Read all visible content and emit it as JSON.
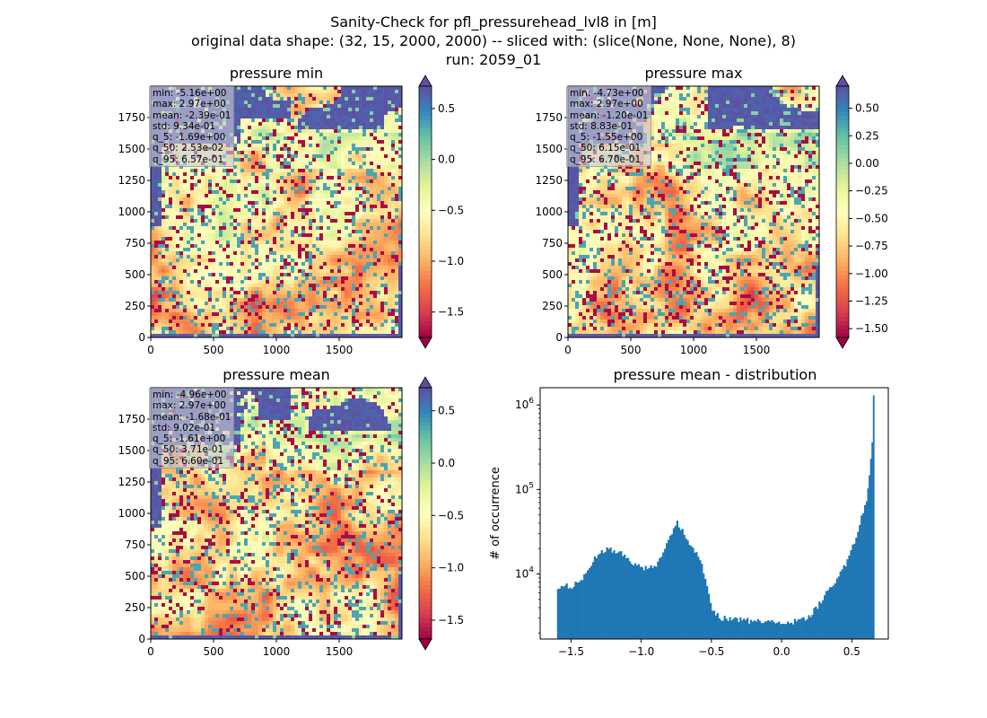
{
  "figure": {
    "title_lines": [
      "Sanity-Check for pfl_pressurehead_lvl8 in [m]",
      "original data shape: (32, 15, 2000, 2000) -- sliced with: (slice(None, None, None), 8)",
      "run: 2059_01"
    ]
  },
  "colors": {
    "spectral": [
      "#9e0142",
      "#d53e4f",
      "#f46d43",
      "#fdae61",
      "#fee08b",
      "#ffffbf",
      "#e6f598",
      "#abdda4",
      "#66c2a5",
      "#3288bd",
      "#5e4fa2"
    ],
    "hist_bar": "#1f77b4"
  },
  "chart_data": [
    {
      "type": "heatmap",
      "title": "pressure min",
      "x_ticks": [
        "0",
        "500",
        "1000",
        "1500"
      ],
      "y_ticks": [
        "0",
        "250",
        "500",
        "750",
        "1000",
        "1250",
        "1500",
        "1750"
      ],
      "xlim": [
        0,
        2000
      ],
      "ylim": [
        0,
        2000
      ],
      "colorbar": {
        "vmin": -1.75,
        "vmax": 0.72,
        "extend": "both",
        "ticks": [
          -1.5,
          -1.0,
          -0.5,
          0.0,
          0.5
        ],
        "tick_labels": [
          "−1.5",
          "−1.0",
          "−0.5",
          "0.0",
          "0.5"
        ]
      },
      "stats": [
        "min: -5.16e+00",
        "max: 2.97e+00",
        "mean: -2.39e-01",
        "std: 9.34e-01",
        "q_5: -1.69e+00",
        "q_50: 2.53e-02",
        "q_95: 6.57e-01"
      ]
    },
    {
      "type": "heatmap",
      "title": "pressure max",
      "x_ticks": [
        "0",
        "500",
        "1000",
        "1500"
      ],
      "y_ticks": [
        "0",
        "250",
        "500",
        "750",
        "1000",
        "1250",
        "1500",
        "1750"
      ],
      "xlim": [
        0,
        2000
      ],
      "ylim": [
        0,
        2000
      ],
      "colorbar": {
        "vmin": -1.58,
        "vmax": 0.7,
        "extend": "both",
        "ticks": [
          -1.5,
          -1.25,
          -1.0,
          -0.75,
          -0.5,
          -0.25,
          0.0,
          0.25,
          0.5
        ],
        "tick_labels": [
          "−1.50",
          "−1.25",
          "−1.00",
          "−0.75",
          "−0.50",
          "−0.25",
          "0.00",
          "0.25",
          "0.50"
        ]
      },
      "stats": [
        "min: -4.73e+00",
        "max: 2.97e+00",
        "mean: -1.20e-01",
        "std: 8.83e-01",
        "q_5: -1.55e+00",
        "q_50: 6.15e-01",
        "q_95: 6.70e-01"
      ]
    },
    {
      "type": "heatmap",
      "title": "pressure mean",
      "x_ticks": [
        "0",
        "500",
        "1000",
        "1500"
      ],
      "y_ticks": [
        "0",
        "250",
        "500",
        "750",
        "1000",
        "1250",
        "1500",
        "1750"
      ],
      "xlim": [
        0,
        2000
      ],
      "ylim": [
        0,
        2000
      ],
      "colorbar": {
        "vmin": -1.68,
        "vmax": 0.72,
        "extend": "both",
        "ticks": [
          -1.5,
          -1.0,
          -0.5,
          0.0,
          0.5
        ],
        "tick_labels": [
          "−1.5",
          "−1.0",
          "−0.5",
          "0.0",
          "0.5"
        ]
      },
      "stats": [
        "min: -4.96e+00",
        "max: 2.97e+00",
        "mean: -1.68e-01",
        "std: 9.02e-01",
        "q_5: -1.61e+00",
        "q_50: 3.71e-01",
        "q_95: 6.60e-01"
      ]
    },
    {
      "type": "bar",
      "title": "pressure mean - distribution",
      "ylabel": "# of occurrence",
      "xlabel": "",
      "xlim": [
        -1.72,
        0.76
      ],
      "ylim": [
        1700,
        1600000
      ],
      "yscale": "log",
      "x_ticks": [
        -1.5,
        -1.0,
        -0.5,
        0.0,
        0.5
      ],
      "x_tick_labels": [
        "−1.5",
        "−1.0",
        "−0.5",
        "0.0",
        "0.5"
      ],
      "y_ticks": [
        10000,
        100000,
        1000000
      ],
      "y_tick_labels": [
        "10",
        "10",
        "10"
      ],
      "y_tick_exponents": [
        "4",
        "5",
        "6"
      ],
      "grid": false,
      "bins": {
        "x": [
          -1.6,
          -1.55,
          -1.5,
          -1.45,
          -1.4,
          -1.35,
          -1.3,
          -1.25,
          -1.2,
          -1.15,
          -1.1,
          -1.05,
          -1.0,
          -0.95,
          -0.9,
          -0.85,
          -0.8,
          -0.75,
          -0.7,
          -0.65,
          -0.6,
          -0.55,
          -0.5,
          -0.45,
          -0.4,
          -0.35,
          -0.3,
          -0.25,
          -0.2,
          -0.15,
          -0.1,
          -0.05,
          0.0,
          0.05,
          0.1,
          0.15,
          0.2,
          0.25,
          0.3,
          0.35,
          0.4,
          0.45,
          0.5,
          0.55,
          0.6,
          0.62,
          0.64,
          0.65,
          0.66
        ],
        "counts": [
          7200,
          7100,
          7200,
          7800,
          10500,
          14500,
          18000,
          19800,
          19200,
          17500,
          14800,
          13000,
          11900,
          11600,
          13000,
          18500,
          28000,
          40000,
          30000,
          22000,
          16500,
          9000,
          3800,
          3100,
          2950,
          2900,
          2850,
          2800,
          2750,
          2700,
          2650,
          2650,
          2620,
          2650,
          2750,
          2950,
          3300,
          4100,
          5400,
          7300,
          9500,
          13000,
          21000,
          40000,
          70000,
          150000,
          350000,
          1200000,
          2000
        ]
      }
    }
  ]
}
